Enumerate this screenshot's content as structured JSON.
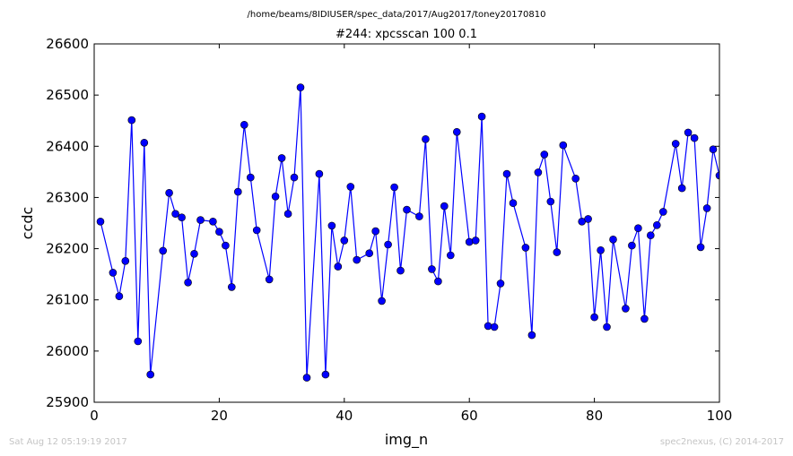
{
  "header": {
    "path": "/home/beams/8IDIUSER/spec_data/2017/Aug2017/toney20170810"
  },
  "footer": {
    "timestamp": "Sat Aug 12 05:19:19 2017",
    "credit": "spec2nexus, (C) 2014-2017"
  },
  "colors": {
    "series": "#0000ff",
    "marker": "#0000ff"
  },
  "chart_data": {
    "type": "line",
    "title": "#244: xpcsscan 100 0.1",
    "xlabel": "img_n",
    "ylabel": "ccdc",
    "xlim": [
      0,
      100
    ],
    "ylim": [
      25900,
      26600
    ],
    "x_ticks": [
      "0",
      "20",
      "40",
      "60",
      "80",
      "100"
    ],
    "y_ticks": [
      "25900",
      "26000",
      "26100",
      "26200",
      "26300",
      "26400",
      "26500",
      "26600"
    ],
    "grid": false,
    "legend": "none",
    "x": [
      1,
      3,
      4,
      5,
      6,
      7,
      8,
      9,
      11,
      12,
      13,
      14,
      15,
      16,
      17,
      19,
      20,
      21,
      22,
      23,
      24,
      25,
      26,
      28,
      29,
      30,
      31,
      32,
      33,
      34,
      36,
      37,
      38,
      39,
      40,
      41,
      42,
      44,
      45,
      46,
      47,
      48,
      49,
      50,
      52,
      53,
      54,
      55,
      56,
      57,
      58,
      60,
      61,
      62,
      63,
      64,
      65,
      66,
      67,
      69,
      70,
      71,
      72,
      73,
      74,
      75,
      77,
      78,
      79,
      80,
      81,
      82,
      83,
      85,
      86,
      87,
      88,
      89,
      90,
      91,
      93,
      94,
      95,
      96,
      97,
      98,
      99,
      100
    ],
    "y": [
      26253,
      26153,
      26107,
      26176,
      26451,
      26019,
      26407,
      25954,
      26196,
      26309,
      26268,
      26261,
      26134,
      26190,
      26256,
      26253,
      26233,
      26206,
      26125,
      26311,
      26442,
      26339,
      26236,
      26140,
      26302,
      26377,
      26268,
      26339,
      26515,
      25948,
      26346,
      25954,
      26245,
      26165,
      26216,
      26321,
      26178,
      26191,
      26234,
      26098,
      26208,
      26320,
      26157,
      26276,
      26263,
      26414,
      26160,
      26136,
      26283,
      26187,
      26428,
      26213,
      26216,
      26458,
      26049,
      26047,
      26132,
      26346,
      26289,
      26202,
      26031,
      26349,
      26384,
      26292,
      26193,
      26402,
      26337,
      26253,
      26258,
      26066,
      26197,
      26047,
      26218,
      26083,
      26206,
      26240,
      26063,
      26226,
      26246,
      26272,
      26405,
      26318,
      26427,
      26416,
      26203,
      26279,
      26394,
      26343
    ]
  }
}
